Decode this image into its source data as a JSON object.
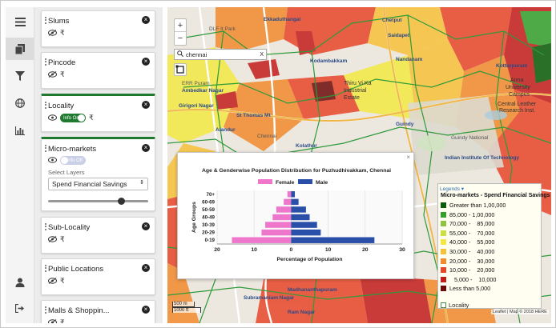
{
  "rail": {
    "items": [
      {
        "icon": "menu-icon"
      },
      {
        "icon": "layers-icon"
      },
      {
        "icon": "filter-icon"
      },
      {
        "icon": "globe-icon"
      },
      {
        "icon": "chart-icon"
      },
      {
        "icon": "user-icon"
      },
      {
        "icon": "logout-icon"
      }
    ]
  },
  "layers": [
    {
      "title": "Slums"
    },
    {
      "title": "Pincode"
    },
    {
      "title": "Locality",
      "toggle": "Info On"
    },
    {
      "title": "Micro-markets",
      "toggle": "Info Off",
      "select_label": "Select Layers",
      "select_value": "Spend Financial Savings",
      "slider": 0.73
    },
    {
      "title": "Sub-Locality"
    },
    {
      "title": "Public Locations"
    },
    {
      "title": "Malls & Shoppin..."
    }
  ],
  "map": {
    "zoom_in": "+",
    "zoom_out": "−",
    "search_value": "chennai",
    "search_clear": "X",
    "labels": [
      {
        "text": "Ekkaduthangal"
      },
      {
        "text": "DLF It Park"
      },
      {
        "text": "Kodambakkam"
      },
      {
        "text": "Saidapet"
      },
      {
        "text": "Chetput"
      },
      {
        "text": "Nandanam"
      },
      {
        "text": "Alandur"
      },
      {
        "text": "Kotturpuram"
      },
      {
        "text": "ERR Puram"
      },
      {
        "text": "Thiru Vi Ka"
      },
      {
        "text": "Industrial"
      },
      {
        "text": "Estate"
      },
      {
        "text": "Anna"
      },
      {
        "text": "University"
      },
      {
        "text": "Campus"
      },
      {
        "text": "Central Leather"
      },
      {
        "text": "Research Inst."
      },
      {
        "text": "Ambedkar Nagar"
      },
      {
        "text": "Girigori Nagar"
      },
      {
        "text": "St Thomas Mt"
      },
      {
        "text": "Guindy"
      },
      {
        "text": "Guindy National"
      },
      {
        "text": "Indian Institute Of Technology"
      },
      {
        "text": "Chennai"
      },
      {
        "text": "Kolathur"
      },
      {
        "text": "Madhananthapuram"
      },
      {
        "text": "Subramaniam Nagar"
      },
      {
        "text": "Ram Nagar"
      }
    ],
    "scale": {
      "metric": "500 m",
      "imperial": "1000 ft"
    },
    "attribution": "Leaflet | Map © 2018 HERE"
  },
  "popup": {
    "close": "×",
    "chart_data": {
      "type": "bar",
      "title": "Age & Genderwise Population Distribution for Puzhudhivakkam, Chennai",
      "categories": [
        "0-19",
        "20-29",
        "30-39",
        "40-49",
        "50-59",
        "60-69",
        "70+"
      ],
      "series": [
        {
          "name": "Female",
          "color": "#ee77cc",
          "values": [
            16,
            8,
            7,
            5,
            4,
            2,
            1
          ]
        },
        {
          "name": "Male",
          "color": "#2a4fa8",
          "values": [
            22.5,
            8,
            7,
            5,
            4,
            2,
            1
          ]
        }
      ],
      "xlabel": "Percentage of Population",
      "ylabel": "Age Groups",
      "xlim": [
        -20,
        30
      ],
      "xticks": [
        "20",
        "10",
        "0",
        "10",
        "20",
        "30"
      ],
      "legend": "top-center",
      "grid": true
    }
  },
  "legend": {
    "toggle_label": "Legends ▾",
    "title": "Micro-markets - Spend Financial Savings",
    "items": [
      {
        "label": "Greater than 1,00,000",
        "color": "#0a5c0a"
      },
      {
        "label": "85,000 - 1,00,000",
        "color": "#33a02c"
      },
      {
        "label": "70,000 -    85,000",
        "color": "#8fc441"
      },
      {
        "label": "55,000 -    70,000",
        "color": "#c9e042"
      },
      {
        "label": "40,000 -    55,000",
        "color": "#f3e843"
      },
      {
        "label": "30,000 -    40,000",
        "color": "#f7c23a"
      },
      {
        "label": "20,000 -    30,000",
        "color": "#f28a2e"
      },
      {
        "label": "10,000 -    20,000",
        "color": "#e8462a"
      },
      {
        "label": "   5,000 -    10,000",
        "color": "#c21d1d"
      },
      {
        "label": "Less than 5,000",
        "color": "#6e0c0c"
      }
    ],
    "locality_label": "Locality"
  }
}
